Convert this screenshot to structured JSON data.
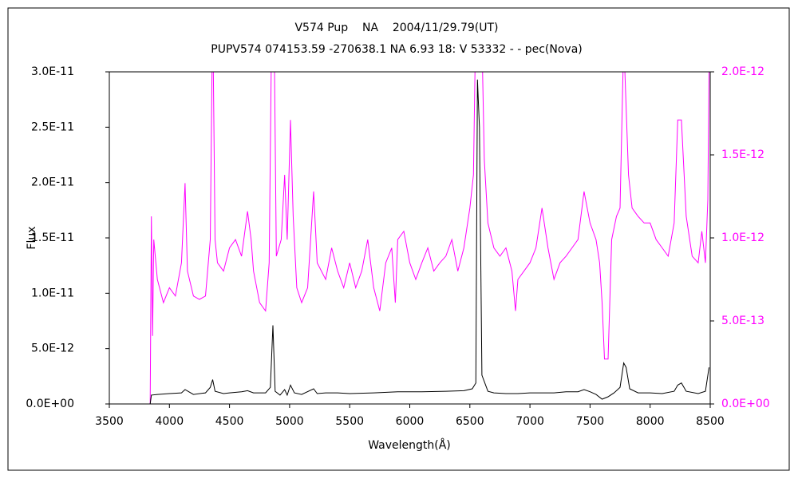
{
  "chart_data": {
    "type": "line",
    "title": "V574 Pup    NA    2004/11/29.79(UT)",
    "subtitle": "PUPV574 074153.59 -270638.1 NA 6.93 18: V 53332 - - pec(Nova)",
    "x_label": "Wavelength(Å)",
    "y_label": "Flux",
    "xlim": [
      3500,
      8500
    ],
    "xticks": [
      3500,
      4000,
      4500,
      5000,
      5500,
      6000,
      6500,
      7000,
      7500,
      8000,
      8500
    ],
    "ylim": [
      0,
      3e-11
    ],
    "yticks": [
      {
        "value": 0,
        "label": "0.0E+00"
      },
      {
        "value": 5e-12,
        "label": "5.0E-12"
      },
      {
        "value": 1e-11,
        "label": "1.0E-11"
      },
      {
        "value": 1.5e-11,
        "label": "1.5E-11"
      },
      {
        "value": 2e-11,
        "label": "2.0E-11"
      },
      {
        "value": 2.5e-11,
        "label": "2.5E-11"
      },
      {
        "value": 3e-11,
        "label": "3.0E-11"
      }
    ],
    "y2lim": [
      0,
      2e-12
    ],
    "y2ticks": [
      {
        "value": 0,
        "label": "0.0E+00"
      },
      {
        "value": 5e-13,
        "label": "5.0E-13"
      },
      {
        "value": 1e-12,
        "label": "1.0E-12"
      },
      {
        "value": 1.5e-12,
        "label": "1.5E-12"
      },
      {
        "value": 2e-12,
        "label": "2.0E-12"
      }
    ],
    "series": [
      {
        "color": "#ff00ff",
        "axis": "y2",
        "x": [
          3840,
          3850,
          3860,
          3870,
          3900,
          3950,
          4000,
          4050,
          4100,
          4130,
          4150,
          4200,
          4250,
          4300,
          4340,
          4360,
          4380,
          4400,
          4450,
          4500,
          4550,
          4600,
          4650,
          4680,
          4700,
          4750,
          4800,
          4830,
          4861,
          4890,
          4930,
          4959,
          4980,
          5007,
          5030,
          5060,
          5100,
          5150,
          5200,
          5230,
          5300,
          5350,
          5400,
          5450,
          5500,
          5550,
          5600,
          5650,
          5700,
          5750,
          5800,
          5850,
          5880,
          5900,
          5950,
          6000,
          6050,
          6100,
          6150,
          6200,
          6250,
          6300,
          6350,
          6400,
          6450,
          6500,
          6530,
          6563,
          6600,
          6620,
          6650,
          6700,
          6750,
          6800,
          6850,
          6880,
          6900,
          6950,
          7000,
          7050,
          7100,
          7150,
          7200,
          7250,
          7300,
          7350,
          7400,
          7450,
          7500,
          7550,
          7580,
          7600,
          7620,
          7650,
          7680,
          7720,
          7750,
          7780,
          7820,
          7850,
          7900,
          7950,
          8000,
          8050,
          8100,
          8150,
          8200,
          8230,
          8260,
          8300,
          8350,
          8400,
          8430,
          8460,
          8480,
          8490
        ],
        "values": [
          0,
          1.13e-12,
          4.1e-13,
          9.9e-13,
          7.5e-13,
          6.1e-13,
          7e-13,
          6.5e-13,
          8.5e-13,
          1.33e-12,
          8e-13,
          6.5e-13,
          6.3e-13,
          6.5e-13,
          9.9e-13,
          2.4e-12,
          9.9e-13,
          8.5e-13,
          8e-13,
          9.4e-13,
          9.9e-13,
          8.9e-13,
          1.16e-12,
          9.9e-13,
          8e-13,
          6.1e-13,
          5.6e-13,
          8.5e-13,
          3e-12,
          8.9e-13,
          9.9e-13,
          1.38e-12,
          9.9e-13,
          1.71e-12,
          1.13e-12,
          7e-13,
          6.1e-13,
          7e-13,
          1.28e-12,
          8.5e-13,
          7.5e-13,
          9.4e-13,
          8e-13,
          7e-13,
          8.5e-13,
          7e-13,
          8e-13,
          9.9e-13,
          7e-13,
          5.6e-13,
          8.5e-13,
          9.4e-13,
          6.1e-13,
          9.9e-13,
          1.04e-12,
          8.5e-13,
          7.5e-13,
          8.5e-13,
          9.4e-13,
          8e-13,
          8.5e-13,
          8.9e-13,
          9.9e-13,
          8e-13,
          9.4e-13,
          1.18e-12,
          1.38e-12,
          3e-12,
          2.2e-12,
          1.47e-12,
          1.09e-12,
          9.4e-13,
          8.9e-13,
          9.4e-13,
          8e-13,
          5.6e-13,
          7.5e-13,
          8e-13,
          8.5e-13,
          9.4e-13,
          1.18e-12,
          9.4e-13,
          7.5e-13,
          8.5e-13,
          8.9e-13,
          9.4e-13,
          9.9e-13,
          1.28e-12,
          1.09e-12,
          9.9e-13,
          8.5e-13,
          6.1e-13,
          2.7e-13,
          2.7e-13,
          9.9e-13,
          1.13e-12,
          1.18e-12,
          2.2e-12,
          1.38e-12,
          1.18e-12,
          1.13e-12,
          1.09e-12,
          1.09e-12,
          9.9e-13,
          9.4e-13,
          8.9e-13,
          1.09e-12,
          1.71e-12,
          1.71e-12,
          1.13e-12,
          8.9e-13,
          8.5e-13,
          1.04e-12,
          8.5e-13,
          1.23e-12,
          2e-12
        ]
      },
      {
        "color": "#000000",
        "x": [
          3840,
          3850,
          3900,
          4000,
          4100,
          4130,
          4200,
          4300,
          4340,
          4360,
          4380,
          4450,
          4500,
          4600,
          4650,
          4700,
          4800,
          4840,
          4861,
          4880,
          4920,
          4959,
          4980,
          5007,
          5040,
          5100,
          5200,
          5230,
          5300,
          5400,
          5500,
          5700,
          5900,
          6100,
          6300,
          6450,
          6520,
          6550,
          6563,
          6580,
          6600,
          6650,
          6700,
          6800,
          6900,
          7000,
          7100,
          7200,
          7300,
          7400,
          7450,
          7500,
          7550,
          7600,
          7650,
          7700,
          7750,
          7780,
          7800,
          7830,
          7900,
          8000,
          8100,
          8200,
          8230,
          8260,
          8300,
          8400,
          8460,
          8490
        ],
        "values": [
          0,
          8e-13,
          8.6e-13,
          9.4e-13,
          1e-12,
          1.3e-12,
          8.6e-13,
          1e-12,
          1.5e-12,
          2.2e-12,
          1.15e-12,
          9.4e-13,
          1e-12,
          1.1e-12,
          1.2e-12,
          1e-12,
          1e-12,
          1.5e-12,
          7.1e-12,
          1.15e-12,
          8e-13,
          1.3e-12,
          8e-13,
          1.7e-12,
          1e-12,
          8.6e-13,
          1.37e-12,
          9.4e-13,
          1e-12,
          1e-12,
          9.4e-13,
          1e-12,
          1.1e-12,
          1.1e-12,
          1.15e-12,
          1.2e-12,
          1.37e-12,
          1.9e-12,
          2.93e-11,
          2.5e-11,
          2.6e-12,
          1.15e-12,
          1e-12,
          9.4e-13,
          9.4e-13,
          1e-12,
          1e-12,
          1e-12,
          1.1e-12,
          1.1e-12,
          1.3e-12,
          1.1e-12,
          8.6e-13,
          4.3e-13,
          6.5e-13,
          1e-12,
          1.5e-12,
          3.7e-12,
          3.3e-12,
          1.37e-12,
          1e-12,
          1e-12,
          9.4e-13,
          1.15e-12,
          1.7e-12,
          1.9e-12,
          1.15e-12,
          9.4e-13,
          1.15e-12,
          3.3e-12
        ]
      }
    ]
  }
}
